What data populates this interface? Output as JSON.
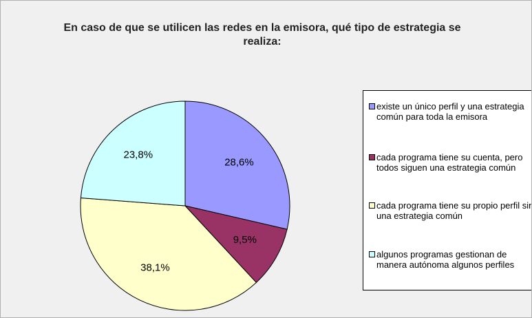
{
  "chart_data": {
    "type": "pie",
    "title": "En caso de que se utilicen las redes en la emisora, qué tipo de estrategia se realiza:",
    "categories": [
      "existe un único perfil y una estrategia común para toda la emisora",
      "cada programa tiene su cuenta, pero todos siguen una estrategia común",
      "cada programa tiene su propio perfil sin una estrategia común",
      "algunos programas gestionan de manera autónoma algunos perfiles"
    ],
    "values": [
      28.6,
      9.5,
      38.1,
      23.8
    ],
    "value_labels": [
      "28,6%",
      "9,5%",
      "38,1%",
      "23,8%"
    ],
    "colors": [
      "#9999ff",
      "#993366",
      "#ffffcc",
      "#ccffff"
    ],
    "legend": "right"
  }
}
